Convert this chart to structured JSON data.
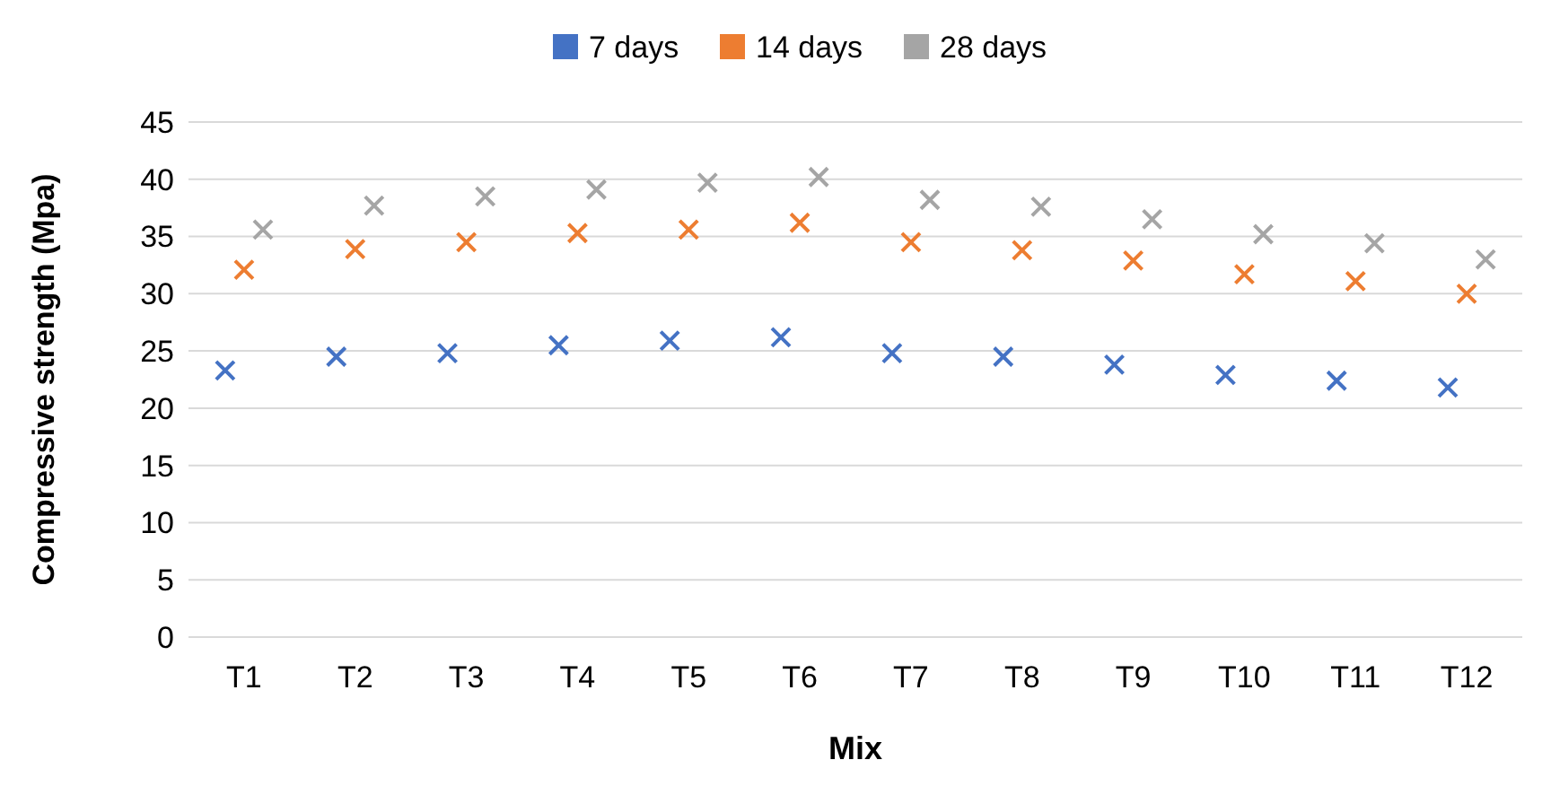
{
  "chart_data": {
    "type": "scatter",
    "xlabel": "Mix",
    "ylabel": "Compressive strength (Mpa)",
    "categories": [
      "T1",
      "T2",
      "T3",
      "T4",
      "T5",
      "T6",
      "T7",
      "T8",
      "T9",
      "T10",
      "T11",
      "T12"
    ],
    "series": [
      {
        "name": "7 days",
        "color": "#4472c4",
        "values": [
          23.3,
          24.5,
          24.8,
          25.5,
          25.9,
          26.2,
          24.8,
          24.5,
          23.8,
          22.9,
          22.4,
          21.8
        ]
      },
      {
        "name": "14 days",
        "color": "#ed7d31",
        "values": [
          32.1,
          33.9,
          34.5,
          35.3,
          35.6,
          36.2,
          34.5,
          33.8,
          32.9,
          31.7,
          31.1,
          30.0
        ]
      },
      {
        "name": "28 days",
        "color": "#a5a5a5",
        "values": [
          35.6,
          37.7,
          38.5,
          39.1,
          39.7,
          40.2,
          38.2,
          37.6,
          36.5,
          35.2,
          34.4,
          33.0
        ]
      }
    ],
    "ylim": [
      0,
      45
    ],
    "yticks": [
      0,
      5,
      10,
      15,
      20,
      25,
      30,
      35,
      40,
      45
    ],
    "grid": "y",
    "legend": "top",
    "marker": "cross"
  }
}
